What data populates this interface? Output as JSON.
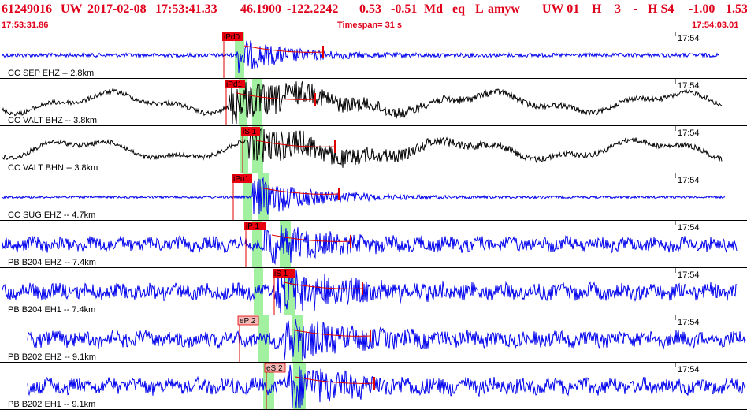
{
  "header": {
    "event_id": "61249016",
    "network": "UW",
    "date": "2017-02-08",
    "time": "17:53:41.33",
    "lat": "46.1900",
    "lon": "-122.2242",
    "depth": "0.53",
    "magnitude": "-0.51",
    "mag_type": "Md",
    "event_type": "eq",
    "flag": "L",
    "analyst": "amyw",
    "region": "UW 01",
    "quality": "H",
    "n": "3",
    "dash": "-",
    "h_s4": "H S4",
    "v1": "-1.00",
    "v2": "1.53"
  },
  "subheader": {
    "start_time": "17:53:31.86",
    "timespan": "Timespan=  31 s",
    "end_time": "17:54:03.01"
  },
  "colors": {
    "header": "#e0001b",
    "trace_short_period": "#0000ee",
    "trace_broadband": "#000000",
    "pick_box": "#e8000f",
    "pick_box_light": "#f5b7b5",
    "window_green": "#90ee90",
    "pick_line": "#e00000"
  },
  "traces": [
    {
      "label": "CC SEP EHZ -- 2.8km",
      "time_label": "17:54",
      "pick": "iPd0",
      "pick_style": "solid"
    },
    {
      "label": "CC VALT BHZ -- 3.8km",
      "time_label": "17:54",
      "pick": "iPd1",
      "pick_style": "solid"
    },
    {
      "label": "CC VALT BHN -- 3.8km",
      "time_label": "17:54",
      "pick": "iS 1",
      "pick_style": "solid"
    },
    {
      "label": "CC SUG EHZ -- 4.7km",
      "time_label": "17:54",
      "pick": "iPu1",
      "pick_style": "solid"
    },
    {
      "label": "PB B204 EHZ -- 7.4km",
      "time_label": "17:54",
      "pick": "iP 1",
      "pick_style": "solid"
    },
    {
      "label": "PB B204 EH1 -- 7.4km",
      "time_label": "17:54",
      "pick": "iS 1",
      "pick_style": "solid"
    },
    {
      "label": "PB B202 EHZ -- 9.1km",
      "time_label": "17:54",
      "pick": "eP 2",
      "pick_style": "light"
    },
    {
      "label": "PB B202 EH1 -- 9.1km",
      "time_label": "17:54",
      "pick": "eS 2",
      "pick_style": "light"
    }
  ]
}
